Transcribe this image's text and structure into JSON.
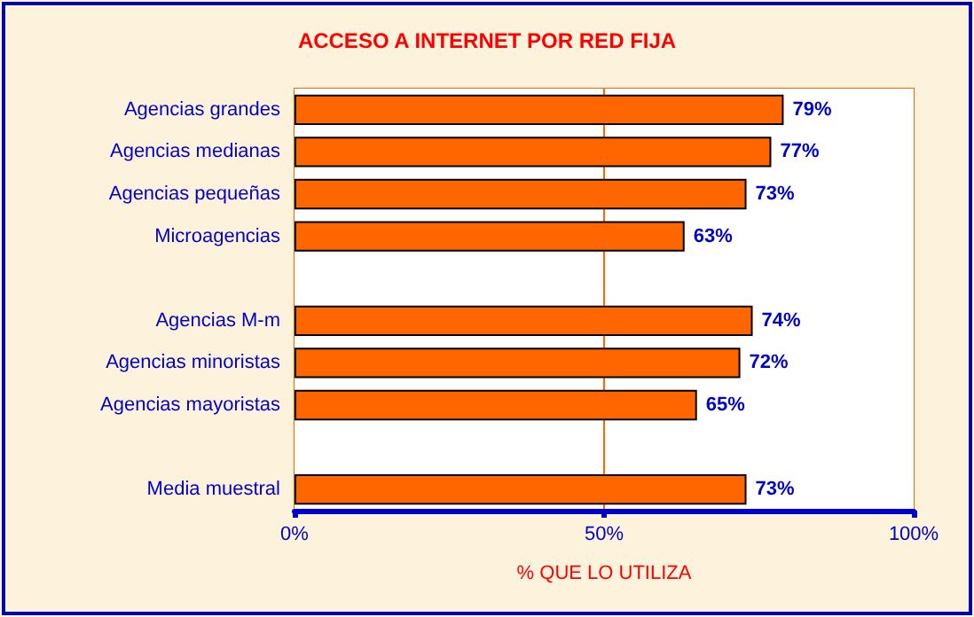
{
  "chart_data": {
    "type": "bar",
    "orientation": "horizontal",
    "title": "ACCESO A INTERNET POR RED FIJA",
    "xlabel": "% QUE LO UTILIZA",
    "categories": [
      "Agencias grandes",
      "Agencias medianas",
      "Agencias pequeñas",
      "Microagencias",
      null,
      "Agencias M-m",
      "Agencias minoristas",
      "Agencias mayoristas",
      null,
      "Media muestral"
    ],
    "values": [
      79,
      77,
      73,
      63,
      null,
      74,
      72,
      65,
      null,
      73
    ],
    "value_labels": [
      "79%",
      "77%",
      "73%",
      "63%",
      null,
      "74%",
      "72%",
      "65%",
      null,
      "73%"
    ],
    "color": "#ff6600",
    "xlim": [
      0,
      100
    ],
    "xticks": [
      {
        "value": 0,
        "label": "0%"
      },
      {
        "value": 50,
        "label": "50%"
      },
      {
        "value": 100,
        "label": "100%"
      }
    ],
    "ref_lines": [
      {
        "axis": "x",
        "value": 50,
        "color": "#ff6600"
      }
    ]
  }
}
